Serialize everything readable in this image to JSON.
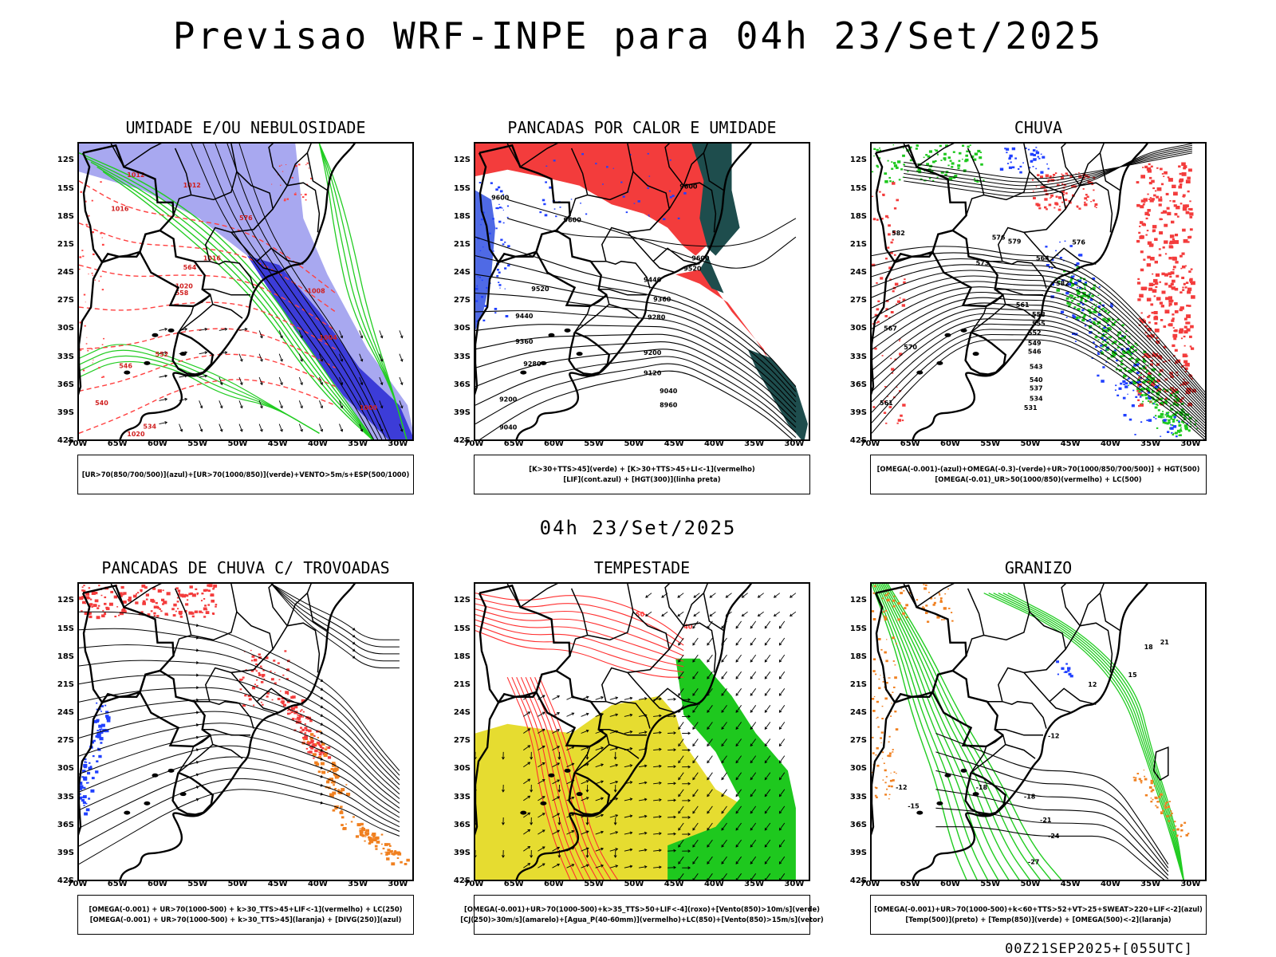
{
  "header": {
    "title": "Previsao WRF-INPE  para 04h 23/Set/2025"
  },
  "mid_time": "04h 23/Set/2025",
  "footer": {
    "stamp": "00Z21SEP2025+[055UTC]"
  },
  "axes": {
    "lat_ticks": [
      "12S",
      "15S",
      "18S",
      "21S",
      "24S",
      "27S",
      "30S",
      "33S",
      "36S",
      "39S",
      "42S"
    ],
    "lon_ticks": [
      "70W",
      "65W",
      "60W",
      "55W",
      "50W",
      "45W",
      "40W",
      "35W",
      "30W"
    ]
  },
  "panels": [
    {
      "title": "UMIDADE E/OU NEBULOSIDADE",
      "legend": [
        "[UR>70(850/700/500)](azul)+[UR>70(1000/850)](verde)+VENTO>5m/s+ESP(500/1000)"
      ],
      "labels": [
        "1012",
        "1012",
        "1016",
        "1020",
        "1020",
        "1016",
        "1008",
        "1004",
        "1000",
        "576",
        "564",
        "558",
        "552",
        "546",
        "540",
        "534"
      ]
    },
    {
      "title": "PANCADAS POR CALOR E UMIDADE",
      "legend": [
        "[K>30+TTS>45](verde)  +  [K>30+TTS>45+LI<-1](vermelho)",
        "[LIF](cont.azul)  +  [HGT(300)](linha preta)"
      ],
      "labels": [
        "9600",
        "9600",
        "9600",
        "9520",
        "9440",
        "9360",
        "9280",
        "9200",
        "9120",
        "9040",
        "8960",
        "9600",
        "9520",
        "9440",
        "9360",
        "9280",
        "9200",
        "9040"
      ]
    },
    {
      "title": "CHUVA",
      "legend": [
        "[OMEGA(-0.001)-(azul)+OMEGA(-0.3)-(verde)+UR>70(1000/850/700/500)]  +  HGT(500)",
        "[OMEGA(-0.01)_UR>50(1000/850)(vermelho)  +  LC(500)"
      ],
      "labels": [
        "582",
        "579",
        "576",
        "573",
        "570",
        "567",
        "564",
        "561",
        "558",
        "555",
        "552",
        "549",
        "546",
        "543",
        "540",
        "537",
        "534",
        "531",
        "561",
        "576",
        "582"
      ]
    },
    {
      "title": "PANCADAS DE CHUVA C/ TROVOADAS",
      "legend": [
        "[OMEGA(-0.001)  +  UR>70(1000-500)  +  k>30_TTS>45+LIF<-1](vermelho)  +  LC(250)",
        "[OMEGA(-0.001)  +  UR>70(1000-500)  +  k>30_TTS>45](laranja)  +  [DIVG(250)](azul)"
      ],
      "labels": []
    },
    {
      "title": "TEMPESTADE",
      "legend": [
        "[OMEGA(-0.001)+UR>70(1000-500)+k>35_TTS>50+LIF<-4](roxo)+[Vento(850)>10m/s](verde)",
        "[CJ(250)>30m/s](amarelo)+[Agua_P(40-60mm)](vermelho)+LC(850)+[Vento(850)>15m/s](vetor)"
      ],
      "labels": [
        "50",
        "40"
      ]
    },
    {
      "title": "GRANIZO",
      "legend": [
        "[OMEGA(-0.001)+UR>70(1000-500)+k<60+TTS>52+VT>25+SWEAT>220+LIF<-2](azul)",
        "[Temp(500)](preto)  +  [Temp(850)](verde)  +  [OMEGA(500)<-2](laranja)"
      ],
      "labels": [
        "-12",
        "-15",
        "-18",
        "-21",
        "-24",
        "-27",
        "12",
        "15",
        "18",
        "21",
        "-12",
        "-18"
      ]
    }
  ],
  "colors": {
    "blue_shade": "#a8a8f0",
    "deep_blue": "#3c3cd8",
    "green_line": "#22cc22",
    "red_dash": "#ff4040",
    "red_fill": "#f33c3c",
    "dark_teal": "#1e4d4d",
    "yellow_fill": "#e6dc30",
    "green_fill": "#1ec81e",
    "orange": "#f08020",
    "blue_dot": "#2040ff"
  }
}
